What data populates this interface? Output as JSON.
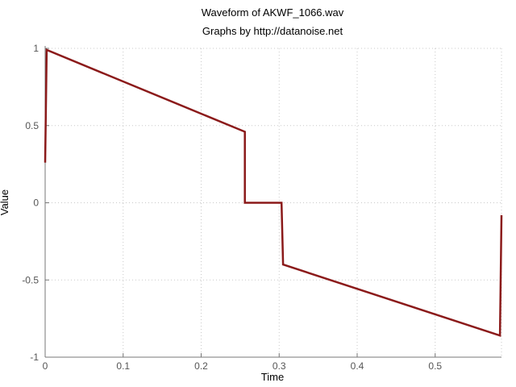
{
  "chart_data": {
    "type": "line",
    "title": "Waveform of AKWF_1066.wav",
    "subtitle": "Graphs by http://datanoise.net",
    "xlabel": "Time",
    "ylabel": "Value",
    "xlim": [
      0,
      0.585
    ],
    "ylim": [
      -1,
      1
    ],
    "x_ticks": [
      0,
      0.1,
      0.2,
      0.3,
      0.4,
      0.5
    ],
    "x_tick_labels": [
      "0",
      "0.1",
      "0.2",
      "0.3",
      "0.4",
      "0.5"
    ],
    "y_ticks": [
      1,
      0.5,
      0,
      -0.5,
      -1
    ],
    "y_tick_labels": [
      "1",
      "0.5",
      "0",
      "-0.5",
      "-1"
    ],
    "grid": true,
    "legend": "none",
    "series": [
      {
        "color": "#8b1a1a",
        "x": [
          0,
          0.002,
          0.256,
          0.256,
          0.303,
          0.305,
          0.583,
          0.585
        ],
        "y": [
          0.26,
          0.99,
          0.46,
          0.0,
          0.0,
          -0.4,
          -0.86,
          -0.08
        ]
      }
    ]
  }
}
